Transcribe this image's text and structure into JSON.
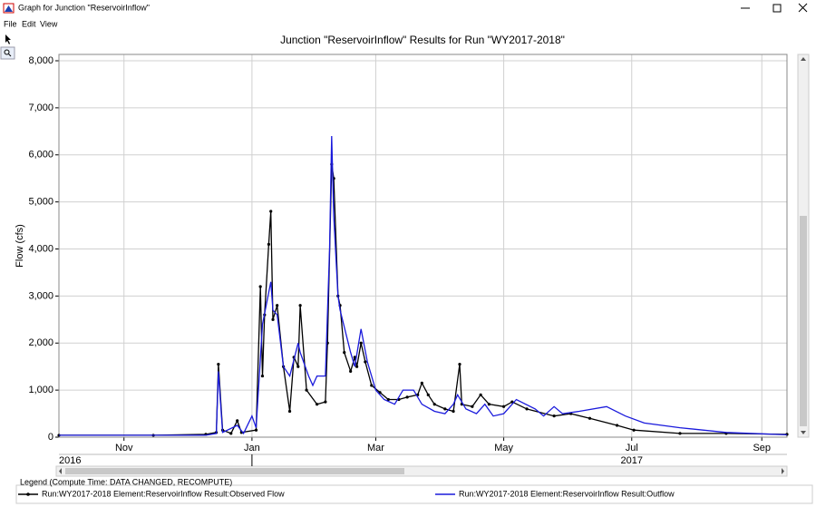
{
  "window": {
    "title": "Graph for Junction \"ReservoirInflow\""
  },
  "menu": [
    "File",
    "Edit",
    "View"
  ],
  "legend_header": "Legend (Compute Time: DATA CHANGED, RECOMPUTE)",
  "chart_data": {
    "type": "line",
    "title": "Junction \"ReservoirInflow\" Results for Run \"WY2017-2018\"",
    "ylabel": "Flow (cfs)",
    "xlim": [
      "2016-10-01",
      "2017-09-13"
    ],
    "ylim": [
      0,
      8135
    ],
    "yticks": [
      0,
      {
        "value": 1000,
        "label": "1,000"
      },
      {
        "value": 2000,
        "label": "2,000"
      },
      {
        "value": 3000,
        "label": "3,000"
      },
      {
        "value": 4000,
        "label": "4,000"
      },
      {
        "value": 5000,
        "label": "5,000"
      },
      {
        "value": 6000,
        "label": "6,000"
      },
      {
        "value": 7000,
        "label": "7,000"
      },
      {
        "value": 8000,
        "label": "8,000"
      }
    ],
    "xticks": [
      {
        "value": "2016-11-01",
        "label": "Nov"
      },
      {
        "value": "2017-01-01",
        "label": "Jan"
      },
      {
        "value": "2017-03-01",
        "label": "Mar"
      },
      {
        "value": "2017-05-01",
        "label": "May"
      },
      {
        "value": "2017-07-01",
        "label": "Jul"
      },
      {
        "value": "2017-09-01",
        "label": "Sep"
      }
    ],
    "year_labels": [
      {
        "value": "2016-10-01",
        "label": "2016"
      },
      {
        "value": "2017-07-01",
        "label": "2017"
      }
    ],
    "year_dividers": [
      "2017-01-01"
    ],
    "grid": true,
    "series": [
      {
        "name": "Run:WY2017-2018 Element:ReservoirInflow Result:Observed Flow",
        "color": "#000000",
        "markers": true,
        "x": [
          "2016-10-01",
          "2016-11-15",
          "2016-12-10",
          "2016-12-15",
          "2016-12-16",
          "2016-12-18",
          "2016-12-22",
          "2016-12-25",
          "2016-12-27",
          "2017-01-03",
          "2017-01-05",
          "2017-01-06",
          "2017-01-07",
          "2017-01-09",
          "2017-01-10",
          "2017-01-11",
          "2017-01-13",
          "2017-01-16",
          "2017-01-19",
          "2017-01-21",
          "2017-01-23",
          "2017-01-24",
          "2017-01-27",
          "2017-02-01",
          "2017-02-05",
          "2017-02-06",
          "2017-02-08",
          "2017-02-09",
          "2017-02-11",
          "2017-02-12",
          "2017-02-14",
          "2017-02-17",
          "2017-02-19",
          "2017-02-20",
          "2017-02-22",
          "2017-02-24",
          "2017-02-27",
          "2017-03-03",
          "2017-03-07",
          "2017-03-12",
          "2017-03-16",
          "2017-03-21",
          "2017-03-23",
          "2017-03-26",
          "2017-03-29",
          "2017-04-03",
          "2017-04-07",
          "2017-04-10",
          "2017-04-11",
          "2017-04-16",
          "2017-04-20",
          "2017-04-24",
          "2017-05-01",
          "2017-05-05",
          "2017-05-12",
          "2017-05-25",
          "2017-06-02",
          "2017-06-11",
          "2017-06-24",
          "2017-07-02",
          "2017-07-24",
          "2017-08-15",
          "2017-09-13"
        ],
        "values": [
          40,
          40,
          60,
          100,
          1550,
          150,
          80,
          350,
          100,
          150,
          3200,
          1300,
          2600,
          4100,
          4800,
          2500,
          2800,
          1500,
          550,
          1700,
          1500,
          2800,
          1000,
          700,
          750,
          2000,
          5800,
          5500,
          3000,
          2800,
          1800,
          1400,
          1700,
          1500,
          2000,
          1600,
          1100,
          950,
          800,
          800,
          850,
          900,
          1150,
          900,
          700,
          600,
          550,
          1550,
          700,
          650,
          900,
          700,
          650,
          750,
          600,
          450,
          500,
          400,
          250,
          150,
          80,
          80,
          60
        ]
      },
      {
        "name": "Run:WY2017-2018 Element:ReservoirInflow Result:Outflow",
        "color": "#1a1adc",
        "markers": false,
        "x": [
          "2016-10-01",
          "2016-12-10",
          "2016-12-15",
          "2016-12-16",
          "2016-12-18",
          "2016-12-25",
          "2016-12-28",
          "2017-01-01",
          "2017-01-03",
          "2017-01-06",
          "2017-01-10",
          "2017-01-11",
          "2017-01-13",
          "2017-01-16",
          "2017-01-19",
          "2017-01-23",
          "2017-01-24",
          "2017-01-28",
          "2017-01-30",
          "2017-02-01",
          "2017-02-05",
          "2017-02-07",
          "2017-02-08",
          "2017-02-09",
          "2017-02-11",
          "2017-02-12",
          "2017-02-17",
          "2017-02-19",
          "2017-02-22",
          "2017-02-25",
          "2017-03-01",
          "2017-03-05",
          "2017-03-10",
          "2017-03-14",
          "2017-03-19",
          "2017-03-23",
          "2017-03-29",
          "2017-04-03",
          "2017-04-07",
          "2017-04-09",
          "2017-04-13",
          "2017-04-18",
          "2017-04-22",
          "2017-04-26",
          "2017-05-01",
          "2017-05-07",
          "2017-05-16",
          "2017-05-20",
          "2017-05-25",
          "2017-05-29",
          "2017-06-06",
          "2017-06-19",
          "2017-06-28",
          "2017-07-07",
          "2017-07-24",
          "2017-08-15",
          "2017-09-13"
        ],
        "values": [
          40,
          40,
          80,
          1400,
          100,
          250,
          80,
          450,
          200,
          2400,
          3300,
          2700,
          2600,
          1500,
          1300,
          2000,
          1800,
          1300,
          1100,
          1300,
          1300,
          4000,
          6400,
          4700,
          3000,
          2700,
          1800,
          1500,
          2300,
          1600,
          1000,
          800,
          700,
          1000,
          1000,
          700,
          550,
          500,
          700,
          900,
          600,
          500,
          700,
          450,
          500,
          800,
          600,
          450,
          650,
          500,
          550,
          650,
          450,
          300,
          200,
          100,
          50
        ]
      }
    ]
  }
}
